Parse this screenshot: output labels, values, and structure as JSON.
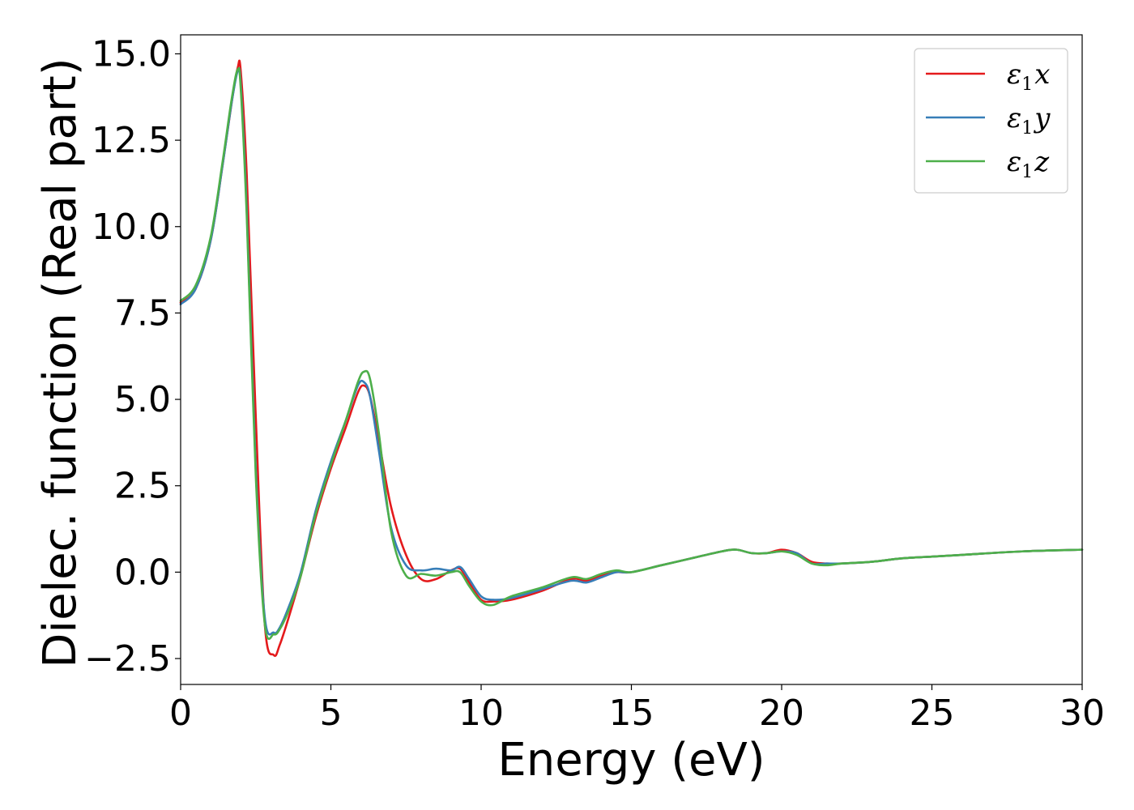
{
  "chart_data": {
    "type": "line",
    "xlabel": "Energy (eV)",
    "ylabel": "Dielec. function (Real part)",
    "xlim": [
      0,
      30
    ],
    "ylim": [
      -3.25,
      15.55
    ],
    "xticks": [
      0,
      5,
      10,
      15,
      20,
      25,
      30
    ],
    "xtick_labels": [
      "0",
      "5",
      "10",
      "15",
      "20",
      "25",
      "30"
    ],
    "yticks": [
      -2.5,
      0.0,
      2.5,
      5.0,
      7.5,
      10.0,
      12.5,
      15.0
    ],
    "ytick_labels": [
      "−2.5",
      "0.0",
      "2.5",
      "5.0",
      "7.5",
      "10.0",
      "12.5",
      "15.0"
    ],
    "grid": false,
    "legend_position": "top-right",
    "series": [
      {
        "name": "ε1x",
        "label_main": "ε",
        "label_sub": "1",
        "label_var": "x",
        "color": "#e41a1c",
        "x": [
          0,
          0.5,
          1.0,
          1.4,
          1.7,
          1.9,
          2.0,
          2.2,
          2.5,
          2.8,
          3.1,
          3.3,
          3.6,
          4.0,
          4.5,
          5.0,
          5.5,
          5.9,
          6.1,
          6.3,
          6.6,
          7.0,
          7.5,
          8.0,
          8.5,
          9.0,
          9.3,
          9.6,
          10.0,
          10.4,
          11.0,
          12.0,
          13.0,
          13.5,
          14.0,
          14.5,
          15.0,
          16.0,
          17.0,
          18.0,
          18.5,
          19.0,
          19.5,
          20.0,
          20.5,
          21.0,
          21.5,
          22.0,
          23.0,
          24.0,
          25.0,
          26.0,
          28.0,
          30.0
        ],
        "y": [
          7.8,
          8.2,
          9.6,
          11.8,
          13.6,
          14.6,
          14.5,
          11.5,
          4.5,
          -1.5,
          -2.4,
          -2.1,
          -1.3,
          -0.1,
          1.6,
          3.0,
          4.2,
          5.2,
          5.4,
          5.1,
          3.8,
          1.9,
          0.5,
          -0.2,
          -0.2,
          0.05,
          0.1,
          -0.3,
          -0.8,
          -0.85,
          -0.8,
          -0.55,
          -0.2,
          -0.25,
          -0.1,
          0.0,
          0.0,
          0.2,
          0.4,
          0.6,
          0.65,
          0.55,
          0.55,
          0.65,
          0.55,
          0.3,
          0.25,
          0.25,
          0.3,
          0.4,
          0.45,
          0.5,
          0.6,
          0.65
        ]
      },
      {
        "name": "ε1y",
        "label_main": "ε",
        "label_sub": "1",
        "label_var": "y",
        "color": "#377eb8",
        "x": [
          0,
          0.5,
          1.0,
          1.4,
          1.7,
          1.9,
          2.0,
          2.2,
          2.5,
          2.8,
          3.1,
          3.3,
          3.6,
          4.0,
          4.5,
          5.0,
          5.5,
          5.9,
          6.1,
          6.3,
          6.6,
          7.0,
          7.5,
          8.0,
          8.5,
          9.0,
          9.3,
          9.6,
          10.0,
          10.4,
          11.0,
          12.0,
          13.0,
          13.5,
          14.0,
          14.5,
          15.0,
          16.0,
          17.0,
          18.0,
          18.5,
          19.0,
          19.5,
          20.0,
          20.5,
          21.0,
          21.5,
          22.0,
          23.0,
          24.0,
          25.0,
          26.0,
          28.0,
          30.0
        ],
        "y": [
          7.75,
          8.2,
          9.6,
          11.8,
          13.6,
          14.5,
          14.1,
          10.5,
          3.0,
          -1.3,
          -1.75,
          -1.6,
          -1.0,
          0.0,
          1.8,
          3.2,
          4.4,
          5.4,
          5.5,
          5.1,
          3.5,
          1.3,
          0.2,
          0.05,
          0.1,
          0.05,
          0.15,
          -0.2,
          -0.7,
          -0.8,
          -0.75,
          -0.5,
          -0.25,
          -0.3,
          -0.15,
          0.0,
          0.0,
          0.2,
          0.4,
          0.6,
          0.65,
          0.55,
          0.55,
          0.6,
          0.55,
          0.25,
          0.25,
          0.25,
          0.3,
          0.4,
          0.45,
          0.5,
          0.6,
          0.65
        ]
      },
      {
        "name": "ε1z",
        "label_main": "ε",
        "label_sub": "1",
        "label_var": "z",
        "color": "#4daf4a",
        "x": [
          0,
          0.5,
          1.0,
          1.4,
          1.7,
          1.9,
          2.0,
          2.2,
          2.5,
          2.8,
          3.1,
          3.3,
          3.6,
          4.0,
          4.5,
          5.0,
          5.5,
          5.9,
          6.1,
          6.3,
          6.6,
          7.0,
          7.5,
          8.0,
          8.5,
          9.0,
          9.3,
          9.6,
          10.0,
          10.4,
          11.0,
          12.0,
          13.0,
          13.5,
          14.0,
          14.5,
          15.0,
          16.0,
          17.0,
          18.0,
          18.5,
          19.0,
          19.5,
          20.0,
          20.5,
          21.0,
          21.5,
          22.0,
          23.0,
          24.0,
          25.0,
          26.0,
          28.0,
          30.0
        ],
        "y": [
          7.85,
          8.3,
          9.7,
          11.9,
          13.7,
          14.55,
          14.0,
          10.3,
          2.8,
          -1.5,
          -1.8,
          -1.65,
          -1.1,
          -0.1,
          1.7,
          3.1,
          4.4,
          5.5,
          5.8,
          5.6,
          4.0,
          1.2,
          -0.1,
          -0.05,
          -0.1,
          0.0,
          0.0,
          -0.4,
          -0.85,
          -0.95,
          -0.7,
          -0.45,
          -0.15,
          -0.2,
          -0.05,
          0.05,
          0.0,
          0.2,
          0.4,
          0.6,
          0.65,
          0.55,
          0.55,
          0.6,
          0.5,
          0.25,
          0.2,
          0.25,
          0.3,
          0.4,
          0.45,
          0.5,
          0.6,
          0.65
        ]
      }
    ]
  }
}
